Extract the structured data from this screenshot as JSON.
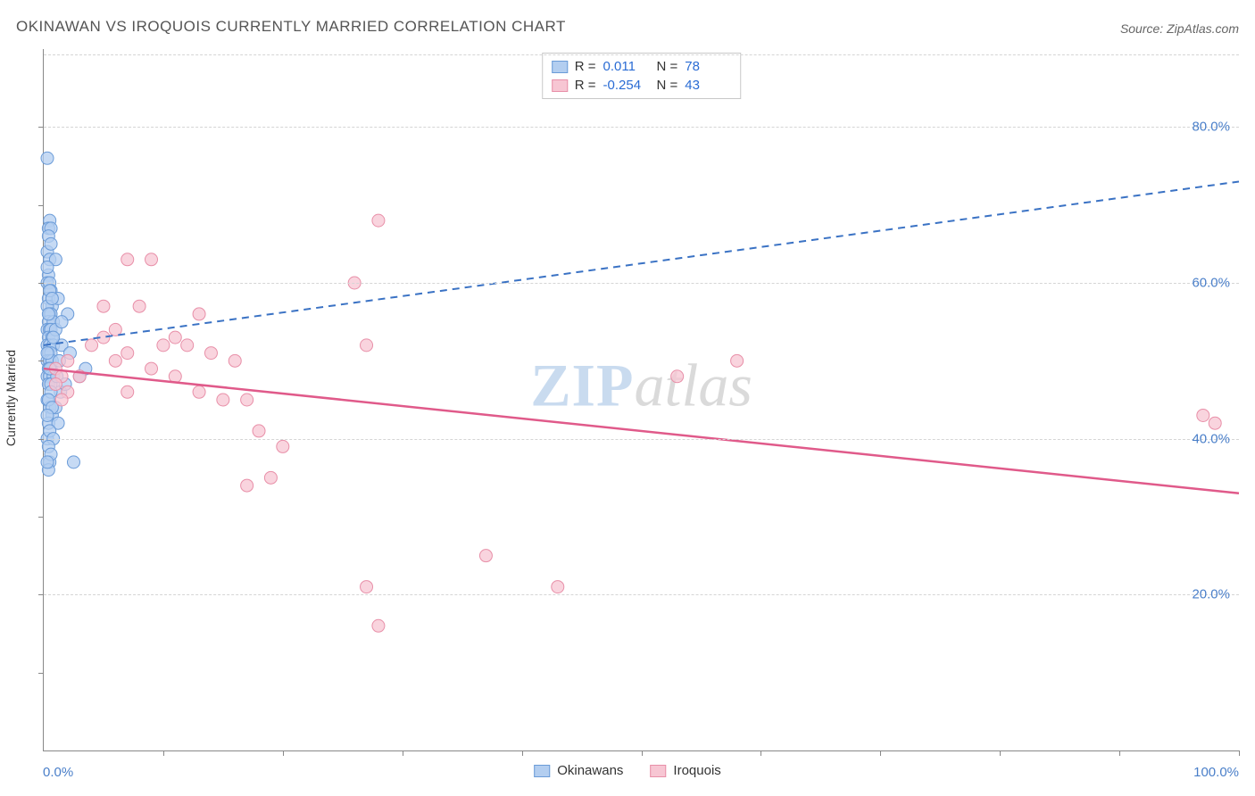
{
  "title": "OKINAWAN VS IROQUOIS CURRENTLY MARRIED CORRELATION CHART",
  "source": "Source: ZipAtlas.com",
  "ylabel": "Currently Married",
  "xlim": [
    0,
    100
  ],
  "ylim": [
    0,
    90
  ],
  "x_axis_labels": {
    "left": "0.0%",
    "right": "100.0%"
  },
  "y_ticks": [
    20,
    40,
    60,
    80
  ],
  "y_tick_labels": [
    "20.0%",
    "40.0%",
    "60.0%",
    "80.0%"
  ],
  "x_tick_marks": [
    10,
    20,
    30,
    40,
    50,
    60,
    70,
    80,
    90,
    100
  ],
  "y_tick_marks_minor": [
    10,
    20,
    30,
    40,
    50,
    60,
    70,
    80
  ],
  "grid_color": "#d5d5d5",
  "axis_color": "#888888",
  "background_color": "#ffffff",
  "watermark": {
    "part1": "ZIP",
    "part2": "atlas"
  },
  "series": [
    {
      "name": "Okinawans",
      "color_fill": "#b3cef0",
      "color_stroke": "#6a9bd8",
      "marker_radius": 7,
      "marker_opacity": 0.75,
      "line_style": "dashed",
      "line_width": 2,
      "line_color": "#3a72c4",
      "trend": {
        "x1": 0,
        "y1": 52,
        "x2": 100,
        "y2": 73
      },
      "R": "0.011",
      "N": "78",
      "points": [
        [
          0.3,
          76
        ],
        [
          0.5,
          68
        ],
        [
          0.4,
          67
        ],
        [
          0.6,
          67
        ],
        [
          0.3,
          64
        ],
        [
          0.5,
          63
        ],
        [
          0.4,
          61
        ],
        [
          0.3,
          60
        ],
        [
          0.5,
          60
        ],
        [
          0.6,
          59
        ],
        [
          0.4,
          58
        ],
        [
          0.7,
          57
        ],
        [
          0.3,
          57
        ],
        [
          0.5,
          56
        ],
        [
          0.6,
          56
        ],
        [
          0.4,
          55
        ],
        [
          0.8,
          55
        ],
        [
          0.3,
          54
        ],
        [
          0.5,
          54
        ],
        [
          0.6,
          54
        ],
        [
          0.4,
          53
        ],
        [
          0.7,
          53
        ],
        [
          0.3,
          52
        ],
        [
          0.5,
          52
        ],
        [
          0.8,
          52
        ],
        [
          0.4,
          51
        ],
        [
          0.6,
          51
        ],
        [
          0.3,
          50
        ],
        [
          0.5,
          50
        ],
        [
          0.7,
          50
        ],
        [
          0.4,
          49
        ],
        [
          0.6,
          49
        ],
        [
          0.3,
          48
        ],
        [
          0.5,
          48
        ],
        [
          0.8,
          48
        ],
        [
          0.4,
          47
        ],
        [
          0.6,
          47
        ],
        [
          0.3,
          45
        ],
        [
          0.5,
          44
        ],
        [
          0.7,
          43
        ],
        [
          0.4,
          42
        ],
        [
          0.3,
          40
        ],
        [
          0.5,
          37
        ],
        [
          0.4,
          36
        ],
        [
          3.0,
          48
        ],
        [
          3.5,
          49
        ],
        [
          2.5,
          37
        ],
        [
          1.0,
          63
        ],
        [
          1.2,
          58
        ],
        [
          1.0,
          54
        ],
        [
          1.5,
          52
        ],
        [
          1.3,
          50
        ],
        [
          1.1,
          48
        ],
        [
          1.4,
          46
        ],
        [
          1.0,
          44
        ],
        [
          1.2,
          42
        ],
        [
          0.4,
          66
        ],
        [
          0.6,
          65
        ],
        [
          0.3,
          62
        ],
        [
          0.5,
          59
        ],
        [
          0.7,
          58
        ],
        [
          0.4,
          56
        ],
        [
          0.8,
          53
        ],
        [
          0.3,
          51
        ],
        [
          0.5,
          49
        ],
        [
          0.6,
          46
        ],
        [
          0.4,
          45
        ],
        [
          0.7,
          44
        ],
        [
          0.3,
          43
        ],
        [
          0.5,
          41
        ],
        [
          0.8,
          40
        ],
        [
          0.4,
          39
        ],
        [
          0.6,
          38
        ],
        [
          0.3,
          37
        ],
        [
          2.0,
          56
        ],
        [
          2.2,
          51
        ],
        [
          1.8,
          47
        ],
        [
          1.5,
          55
        ]
      ]
    },
    {
      "name": "Iroquois",
      "color_fill": "#f7c6d3",
      "color_stroke": "#e88fa8",
      "marker_radius": 7,
      "marker_opacity": 0.75,
      "line_style": "solid",
      "line_width": 2.5,
      "line_color": "#e05a8a",
      "trend": {
        "x1": 0,
        "y1": 49,
        "x2": 100,
        "y2": 33
      },
      "R": "-0.254",
      "N": "43",
      "points": [
        [
          28,
          68
        ],
        [
          26,
          60
        ],
        [
          27,
          52
        ],
        [
          27,
          21
        ],
        [
          28,
          16
        ],
        [
          7,
          63
        ],
        [
          9,
          63
        ],
        [
          5,
          57
        ],
        [
          8,
          57
        ],
        [
          11,
          53
        ],
        [
          13,
          56
        ],
        [
          10,
          52
        ],
        [
          12,
          52
        ],
        [
          6,
          50
        ],
        [
          14,
          51
        ],
        [
          9,
          49
        ],
        [
          11,
          48
        ],
        [
          7,
          46
        ],
        [
          13,
          46
        ],
        [
          15,
          45
        ],
        [
          17,
          45
        ],
        [
          18,
          41
        ],
        [
          20,
          39
        ],
        [
          19,
          35
        ],
        [
          17,
          34
        ],
        [
          16,
          50
        ],
        [
          37,
          25
        ],
        [
          43,
          21
        ],
        [
          53,
          48
        ],
        [
          58,
          50
        ],
        [
          98,
          42
        ],
        [
          97,
          43
        ],
        [
          1,
          49
        ],
        [
          1.5,
          48
        ],
        [
          2,
          50
        ],
        [
          1,
          47
        ],
        [
          2,
          46
        ],
        [
          1.5,
          45
        ],
        [
          3,
          48
        ],
        [
          4,
          52
        ],
        [
          5,
          53
        ],
        [
          6,
          54
        ],
        [
          7,
          51
        ]
      ]
    }
  ],
  "legend_top": {
    "r_label": "R =",
    "n_label": "N ="
  },
  "legend_bottom": true,
  "title_fontsize": 17,
  "label_fontsize": 14,
  "tick_fontsize": 15,
  "tick_color": "#4a7fc9"
}
